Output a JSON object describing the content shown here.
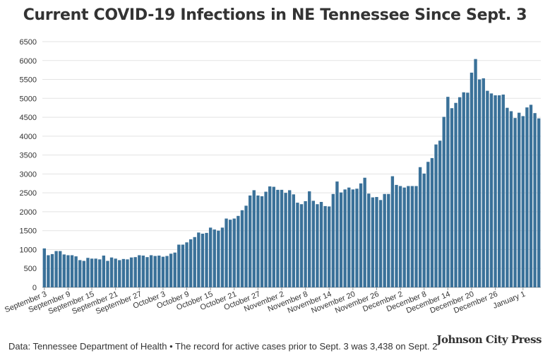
{
  "chart_data": {
    "type": "bar",
    "title": "Current COVID-19 Infections in NE Tennessee Since Sept. 3",
    "xlabel": "",
    "ylabel": "",
    "ylim": [
      0,
      6500
    ],
    "yticks": [
      0,
      500,
      1000,
      1500,
      2000,
      2500,
      3000,
      3500,
      4000,
      4500,
      5000,
      5500,
      6000,
      6500
    ],
    "grid": true,
    "bar_color": "#3a7199",
    "tick_labels": [
      {
        "index": 0,
        "label": "September 3"
      },
      {
        "index": 6,
        "label": "September 9"
      },
      {
        "index": 12,
        "label": "September 15"
      },
      {
        "index": 18,
        "label": "September 21"
      },
      {
        "index": 24,
        "label": "September 27"
      },
      {
        "index": 30,
        "label": "October 3"
      },
      {
        "index": 36,
        "label": "October 9"
      },
      {
        "index": 42,
        "label": "October 15"
      },
      {
        "index": 48,
        "label": "October 21"
      },
      {
        "index": 54,
        "label": "October 27"
      },
      {
        "index": 60,
        "label": "November 2"
      },
      {
        "index": 66,
        "label": "November 8"
      },
      {
        "index": 72,
        "label": "November 14"
      },
      {
        "index": 78,
        "label": "November 20"
      },
      {
        "index": 84,
        "label": "November 26"
      },
      {
        "index": 90,
        "label": "December 2"
      },
      {
        "index": 96,
        "label": "December 8"
      },
      {
        "index": 102,
        "label": "December 14"
      },
      {
        "index": 108,
        "label": "December 20"
      },
      {
        "index": 114,
        "label": "December 26"
      },
      {
        "index": 121,
        "label": "January 1"
      }
    ],
    "values": [
      1030,
      850,
      880,
      960,
      960,
      870,
      850,
      850,
      820,
      720,
      700,
      780,
      760,
      760,
      740,
      840,
      700,
      790,
      760,
      720,
      750,
      740,
      790,
      800,
      850,
      840,
      800,
      850,
      830,
      840,
      810,
      830,
      890,
      920,
      1130,
      1130,
      1190,
      1270,
      1330,
      1450,
      1420,
      1440,
      1580,
      1530,
      1500,
      1580,
      1820,
      1790,
      1820,
      1890,
      2040,
      2160,
      2430,
      2570,
      2430,
      2410,
      2530,
      2670,
      2660,
      2580,
      2580,
      2500,
      2570,
      2460,
      2240,
      2200,
      2280,
      2540,
      2290,
      2200,
      2260,
      2150,
      2140,
      2470,
      2800,
      2510,
      2590,
      2640,
      2590,
      2610,
      2750,
      2900,
      2480,
      2380,
      2390,
      2310,
      2470,
      2470,
      2940,
      2710,
      2680,
      2640,
      2680,
      2680,
      2680,
      3180,
      3010,
      3320,
      3420,
      3780,
      3880,
      4510,
      5040,
      4740,
      4880,
      5030,
      5160,
      5150,
      5680,
      6040,
      5500,
      5530,
      5200,
      5130,
      5080,
      5080,
      5100,
      4750,
      4660,
      4480,
      4620,
      4530,
      4760,
      4830,
      4610,
      4470
    ]
  },
  "footer": {
    "source_text": "Data: Tennessee Department of Health • The record for active cases prior to Sept. 3 was 3,438 on Sept. 2",
    "logo_text": "Johnson City Press"
  }
}
